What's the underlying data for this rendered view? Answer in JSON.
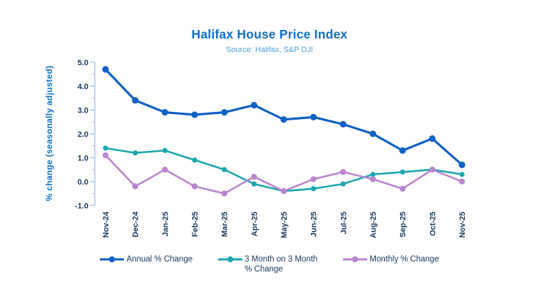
{
  "header": {
    "title": "Halifax House Price Index",
    "subtitle": "Source: Halifax, S&P DJI"
  },
  "chart_data": {
    "type": "line",
    "title": "Halifax House Price Index",
    "subtitle": "Source: Halifax, S&P DJI",
    "xlabel": "",
    "ylabel": "% change (seasonally adjusted)",
    "ylim": [
      -1.0,
      5.0
    ],
    "yticks": [
      5.0,
      4.0,
      3.0,
      2.0,
      1.0,
      0.0,
      -1.0
    ],
    "ytick_labels": [
      "5.0",
      "4.0",
      "3.0",
      "2.0",
      "1.0",
      "0.0",
      "-1.0"
    ],
    "minor_tick_step": 0.5,
    "grid": false,
    "legend_position": "bottom",
    "categories": [
      "Nov-24",
      "Dec-24",
      "Jan-25",
      "Feb-25",
      "Mar-25",
      "Apr-25",
      "May-25",
      "Jun-25",
      "Jul-25",
      "Aug-25",
      "Sep-25",
      "Oct-25",
      "Nov-25"
    ],
    "series": [
      {
        "id": "annual",
        "name": "Annual % Change",
        "legend_lines": [
          "Annual % Change"
        ],
        "color": "#1160c4",
        "values": [
          4.7,
          3.4,
          2.9,
          2.8,
          2.9,
          3.2,
          2.6,
          2.7,
          2.4,
          2.0,
          1.3,
          1.8,
          0.7
        ]
      },
      {
        "id": "three-month-on-three-month",
        "name": "3 Month on 3 Month % Change",
        "legend_lines": [
          "3 Month on 3 Month",
          "% Change"
        ],
        "color": "#1ba7ad",
        "values": [
          1.4,
          1.2,
          1.3,
          0.9,
          0.5,
          -0.1,
          -0.4,
          -0.3,
          -0.1,
          0.3,
          0.4,
          0.5,
          0.3
        ]
      },
      {
        "id": "monthly",
        "name": "Monthly % Change",
        "legend_lines": [
          "Monthly % Change"
        ],
        "color": "#ba86cf",
        "values": [
          1.1,
          -0.2,
          0.5,
          -0.2,
          -0.5,
          0.2,
          -0.4,
          0.1,
          0.4,
          0.1,
          -0.3,
          0.5,
          0.0
        ]
      }
    ]
  },
  "colors": {
    "title": "#0d6fc9",
    "subtitle": "#4ba2dd",
    "axis": "#a9c9ec",
    "tick_labels": "#17375e",
    "legend_text": "#17375e",
    "background": "#ffffff"
  }
}
